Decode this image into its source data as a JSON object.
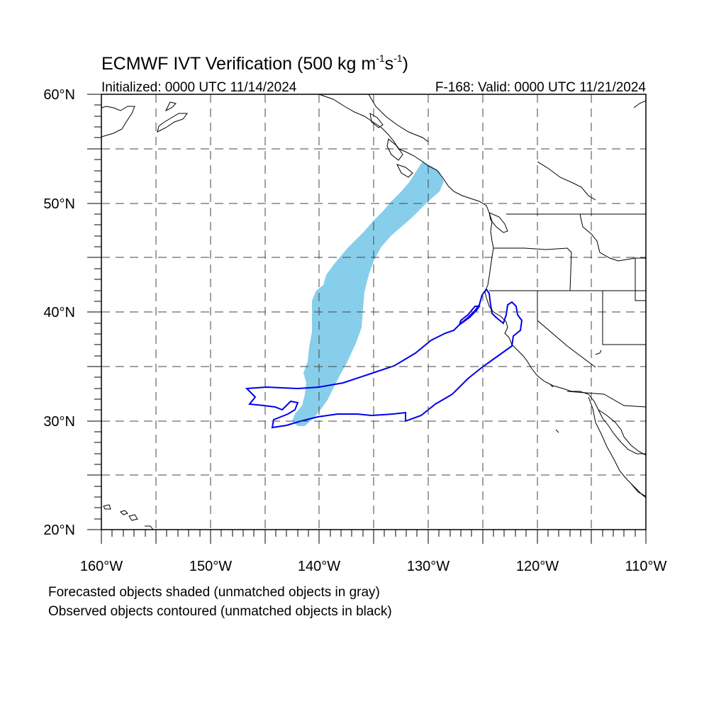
{
  "title": {
    "main": "ECMWF IVT Verification (500 kg m",
    "sup1": "-1",
    "mid": "s",
    "sup2": "-1",
    "close": ")"
  },
  "subtitle_left": "Initialized: 0000 UTC 11/14/2024",
  "subtitle_right": "F-168: Valid: 0000 UTC 11/21/2024",
  "map": {
    "lon_range": [
      -160,
      -110
    ],
    "lat_range": [
      20,
      60
    ],
    "lat_ticks": [
      "20°N",
      "30°N",
      "40°N",
      "50°N",
      "60°N"
    ],
    "lon_ticks": [
      "160°W",
      "150°W",
      "140°W",
      "130°W",
      "120°W",
      "110°W"
    ],
    "grid_spacing_deg": 5,
    "grid_style": "dashed"
  },
  "objects": {
    "forecast_color": "#87ceeb",
    "observed_color": "#0000ee"
  },
  "notes": [
    "Forecasted objects shaded (unmatched objects in gray)",
    "Observed objects contoured (unmatched objects in black)"
  ],
  "icons": [
    "coastline-map"
  ]
}
